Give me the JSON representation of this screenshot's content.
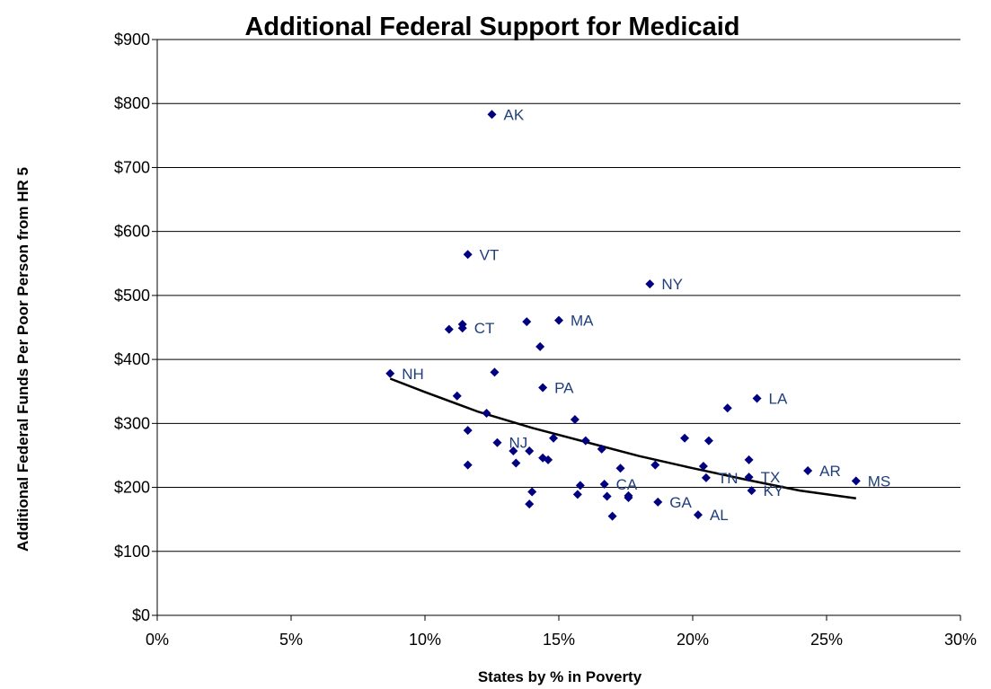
{
  "chart_data": {
    "type": "scatter",
    "title": "Additional Federal Support for Medicaid",
    "xlabel": "States by % in Poverty",
    "ylabel": "Additional Federal Funds Per Poor Person from HR 5",
    "xlim": [
      0,
      0.3
    ],
    "ylim": [
      0,
      900
    ],
    "x_ticks": [
      {
        "value": 0.0,
        "label": "0%"
      },
      {
        "value": 0.05,
        "label": "5%"
      },
      {
        "value": 0.1,
        "label": "10%"
      },
      {
        "value": 0.15,
        "label": "15%"
      },
      {
        "value": 0.2,
        "label": "20%"
      },
      {
        "value": 0.25,
        "label": "25%"
      },
      {
        "value": 0.3,
        "label": "30%"
      }
    ],
    "y_ticks": [
      {
        "value": 0,
        "label": "$0"
      },
      {
        "value": 100,
        "label": "$100"
      },
      {
        "value": 200,
        "label": "$200"
      },
      {
        "value": 300,
        "label": "$300"
      },
      {
        "value": 400,
        "label": "$400"
      },
      {
        "value": 500,
        "label": "$500"
      },
      {
        "value": 600,
        "label": "$600"
      },
      {
        "value": 700,
        "label": "$700"
      },
      {
        "value": 800,
        "label": "$800"
      },
      {
        "value": 900,
        "label": "$900"
      }
    ],
    "grid": {
      "horizontal": true,
      "vertical": false
    },
    "legend": "none",
    "marker_color": "#000080",
    "label_color": "#1f3f7a",
    "trendline_color": "#000000",
    "points": [
      {
        "x": 0.125,
        "y": 783,
        "label": "AK"
      },
      {
        "x": 0.116,
        "y": 564,
        "label": "VT"
      },
      {
        "x": 0.184,
        "y": 518,
        "label": "NY"
      },
      {
        "x": 0.138,
        "y": 459
      },
      {
        "x": 0.15,
        "y": 461,
        "label": "MA"
      },
      {
        "x": 0.114,
        "y": 455
      },
      {
        "x": 0.109,
        "y": 447
      },
      {
        "x": 0.114,
        "y": 449,
        "label": "CT"
      },
      {
        "x": 0.143,
        "y": 420
      },
      {
        "x": 0.087,
        "y": 378,
        "label": "NH"
      },
      {
        "x": 0.126,
        "y": 380
      },
      {
        "x": 0.144,
        "y": 356,
        "label": "PA"
      },
      {
        "x": 0.112,
        "y": 343
      },
      {
        "x": 0.224,
        "y": 339,
        "label": "LA"
      },
      {
        "x": 0.213,
        "y": 324
      },
      {
        "x": 0.123,
        "y": 316
      },
      {
        "x": 0.156,
        "y": 306
      },
      {
        "x": 0.116,
        "y": 289
      },
      {
        "x": 0.127,
        "y": 270,
        "label": "NJ"
      },
      {
        "x": 0.148,
        "y": 277
      },
      {
        "x": 0.16,
        "y": 273
      },
      {
        "x": 0.197,
        "y": 277
      },
      {
        "x": 0.206,
        "y": 273
      },
      {
        "x": 0.166,
        "y": 260
      },
      {
        "x": 0.133,
        "y": 257
      },
      {
        "x": 0.139,
        "y": 257
      },
      {
        "x": 0.144,
        "y": 246
      },
      {
        "x": 0.146,
        "y": 243
      },
      {
        "x": 0.221,
        "y": 243
      },
      {
        "x": 0.134,
        "y": 238
      },
      {
        "x": 0.116,
        "y": 235
      },
      {
        "x": 0.186,
        "y": 235
      },
      {
        "x": 0.204,
        "y": 233
      },
      {
        "x": 0.173,
        "y": 230
      },
      {
        "x": 0.243,
        "y": 226,
        "label": "AR"
      },
      {
        "x": 0.221,
        "y": 216,
        "label": "TX"
      },
      {
        "x": 0.261,
        "y": 210,
        "label": "MS"
      },
      {
        "x": 0.158,
        "y": 203
      },
      {
        "x": 0.167,
        "y": 205,
        "label": "CA"
      },
      {
        "x": 0.14,
        "y": 193
      },
      {
        "x": 0.157,
        "y": 189
      },
      {
        "x": 0.168,
        "y": 186
      },
      {
        "x": 0.176,
        "y": 184
      },
      {
        "x": 0.176,
        "y": 187
      },
      {
        "x": 0.222,
        "y": 195,
        "label": "KY"
      },
      {
        "x": 0.187,
        "y": 177,
        "label": "GA"
      },
      {
        "x": 0.139,
        "y": 174
      },
      {
        "x": 0.17,
        "y": 155
      },
      {
        "x": 0.202,
        "y": 157,
        "label": "AL"
      },
      {
        "x": 0.205,
        "y": 215,
        "label": "TN"
      }
    ],
    "trendline": {
      "type": "polynomial",
      "x": [
        0.087,
        0.1,
        0.12,
        0.14,
        0.16,
        0.18,
        0.2,
        0.22,
        0.24,
        0.261
      ],
      "y": [
        370,
        349,
        318,
        293,
        271,
        249,
        230,
        212,
        195,
        183
      ]
    }
  }
}
